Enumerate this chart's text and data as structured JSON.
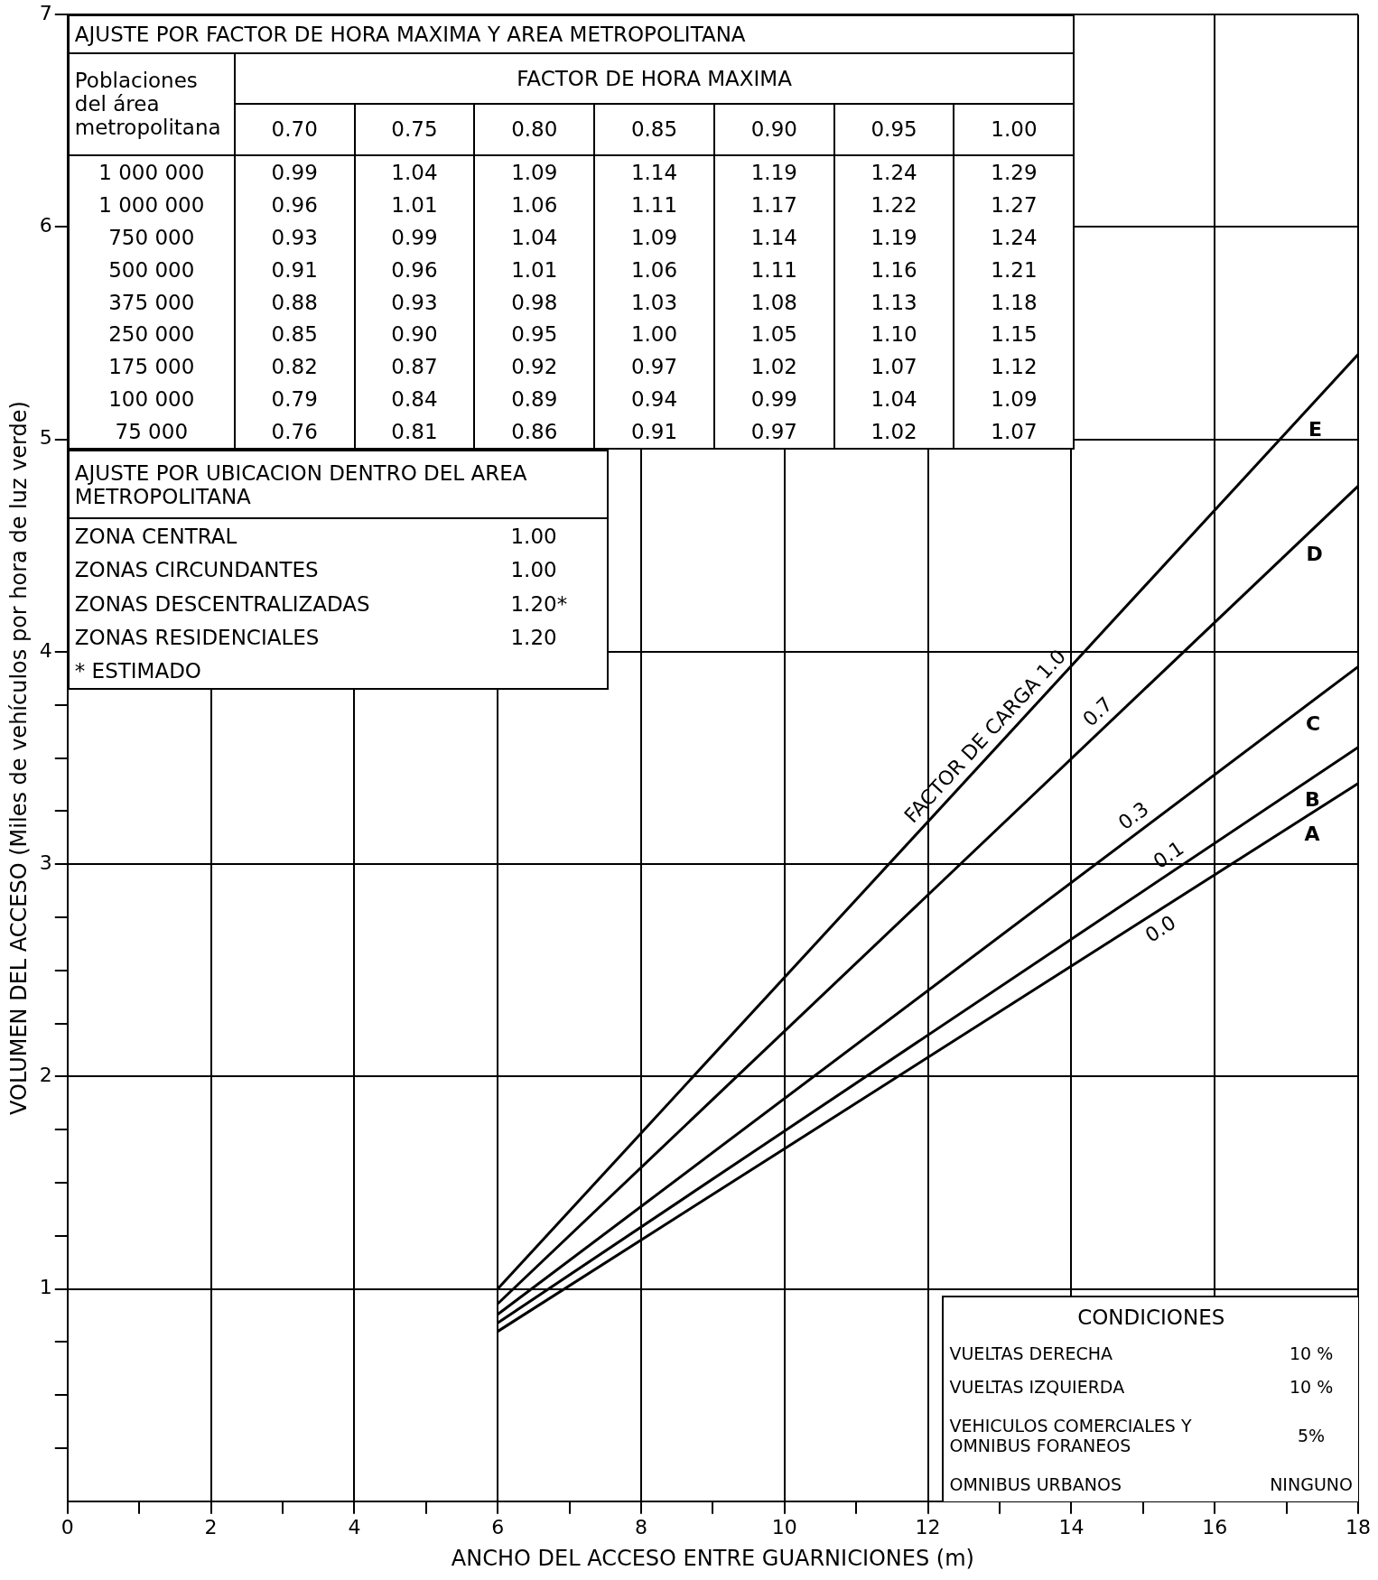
{
  "chart_data": {
    "type": "line",
    "xlabel": "ANCHO DEL ACCESO ENTRE GUARNICIONES (m)",
    "ylabel": "VOLUMEN DEL ACCESO (Miles de vehículos por hora de luz verde)",
    "xlim": [
      0,
      18
    ],
    "ylim": [
      0,
      7
    ],
    "xticks": [
      0,
      {
        "value": 1,
        "label": null
      },
      2,
      {
        "value": 3,
        "label": null
      },
      4,
      {
        "value": 5,
        "label": null
      },
      6,
      {
        "value": 7,
        "label": null
      },
      8,
      {
        "value": 9,
        "label": null
      },
      10,
      {
        "value": 11,
        "label": null
      },
      12,
      {
        "value": 13,
        "label": null
      },
      14,
      {
        "value": 15,
        "label": null
      },
      16,
      {
        "value": 17,
        "label": null
      },
      18
    ],
    "yticks": [
      {
        "value": 0.25,
        "label": null
      },
      {
        "value": 0.5,
        "label": null
      },
      {
        "value": 0.75,
        "label": null
      },
      1,
      {
        "value": 1.25,
        "label": null
      },
      {
        "value": 1.5,
        "label": null
      },
      {
        "value": 1.75,
        "label": null
      },
      2,
      {
        "value": 2.25,
        "label": null
      },
      {
        "value": 2.5,
        "label": null
      },
      {
        "value": 2.75,
        "label": null
      },
      3,
      {
        "value": 3.25,
        "label": null
      },
      {
        "value": 3.5,
        "label": null
      },
      {
        "value": 3.75,
        "label": null
      },
      4,
      5,
      6,
      7
    ],
    "grid": true,
    "legend": false,
    "marker": "none",
    "line_style": "solid",
    "x": [
      6,
      18
    ],
    "series": [
      {
        "name": "E",
        "color": "#000000",
        "values": [
          1.0,
          5.4
        ]
      },
      {
        "name": "D",
        "color": "#000000",
        "values": [
          0.93,
          4.78
        ]
      },
      {
        "name": "C",
        "color": "#000000",
        "values": [
          0.88,
          3.93
        ]
      },
      {
        "name": "B",
        "color": "#000000",
        "values": [
          0.84,
          3.55
        ]
      },
      {
        "name": "A",
        "color": "#000000",
        "values": [
          0.8,
          3.38
        ]
      }
    ],
    "annotations": [
      "FACTOR DE CARGA 1.0",
      "0.7",
      "0.3",
      "0.1",
      "0.0",
      "AJUSTE POR FACTOR DE HORA MAXIMA Y AREA METROPOLITANA",
      "Poblaciones del área metropolitana",
      "FACTOR DE HORA MAXIMA",
      "0.70",
      "0.75",
      "0.80",
      "0.85",
      "0.90",
      "0.95",
      "1.00",
      "1 000 000",
      "0.99",
      "1.04",
      "1.09",
      "1.14",
      "1.19",
      "1.24",
      "1.29",
      "1 000 000",
      "0.96",
      "1.01",
      "1.06",
      "1.11",
      "1.17",
      "1.22",
      "1.27",
      "750 000",
      "0.93",
      "0.99",
      "1.04",
      "1.09",
      "1.14",
      "1.19",
      "1.24",
      "500 000",
      "0.91",
      "0.96",
      "1.01",
      "1.06",
      "1.11",
      "1.16",
      "1.21",
      "375 000",
      "0.88",
      "0.93",
      "0.98",
      "1.03",
      "1.08",
      "1.13",
      "1.18",
      "250 000",
      "0.85",
      "0.90",
      "0.95",
      "1.00",
      "1.05",
      "1.10",
      "1.15",
      "175 000",
      "0.82",
      "0.87",
      "0.92",
      "0.97",
      "1.02",
      "1.07",
      "1.12",
      "100 000",
      "0.79",
      "0.84",
      "0.89",
      "0.94",
      "0.99",
      "1.04",
      "1.09",
      "75 000",
      "0.76",
      "0.81",
      "0.86",
      "0.91",
      "0.97",
      "1.02",
      "1.07",
      "AJUSTE POR UBICACION DENTRO DEL AREA METROPOLITANA",
      "ZONA CENTRAL",
      "1.00",
      "ZONAS CIRCUNDANTES",
      "1.00",
      "ZONAS DESCENTRALIZADAS",
      "1.20*",
      "ZONAS RESIDENCIALES",
      "1.20",
      "* ESTIMADO",
      "CONDICIONES",
      "VUELTAS DERECHA",
      "10 %",
      "VUELTAS IZQUIERDA",
      "10 %",
      "VEHICULOS COMERCIALES Y OMNIBUS FORANEOS",
      "5%",
      "OMNIBUS URBANOS",
      "NINGUNO"
    ]
  }
}
